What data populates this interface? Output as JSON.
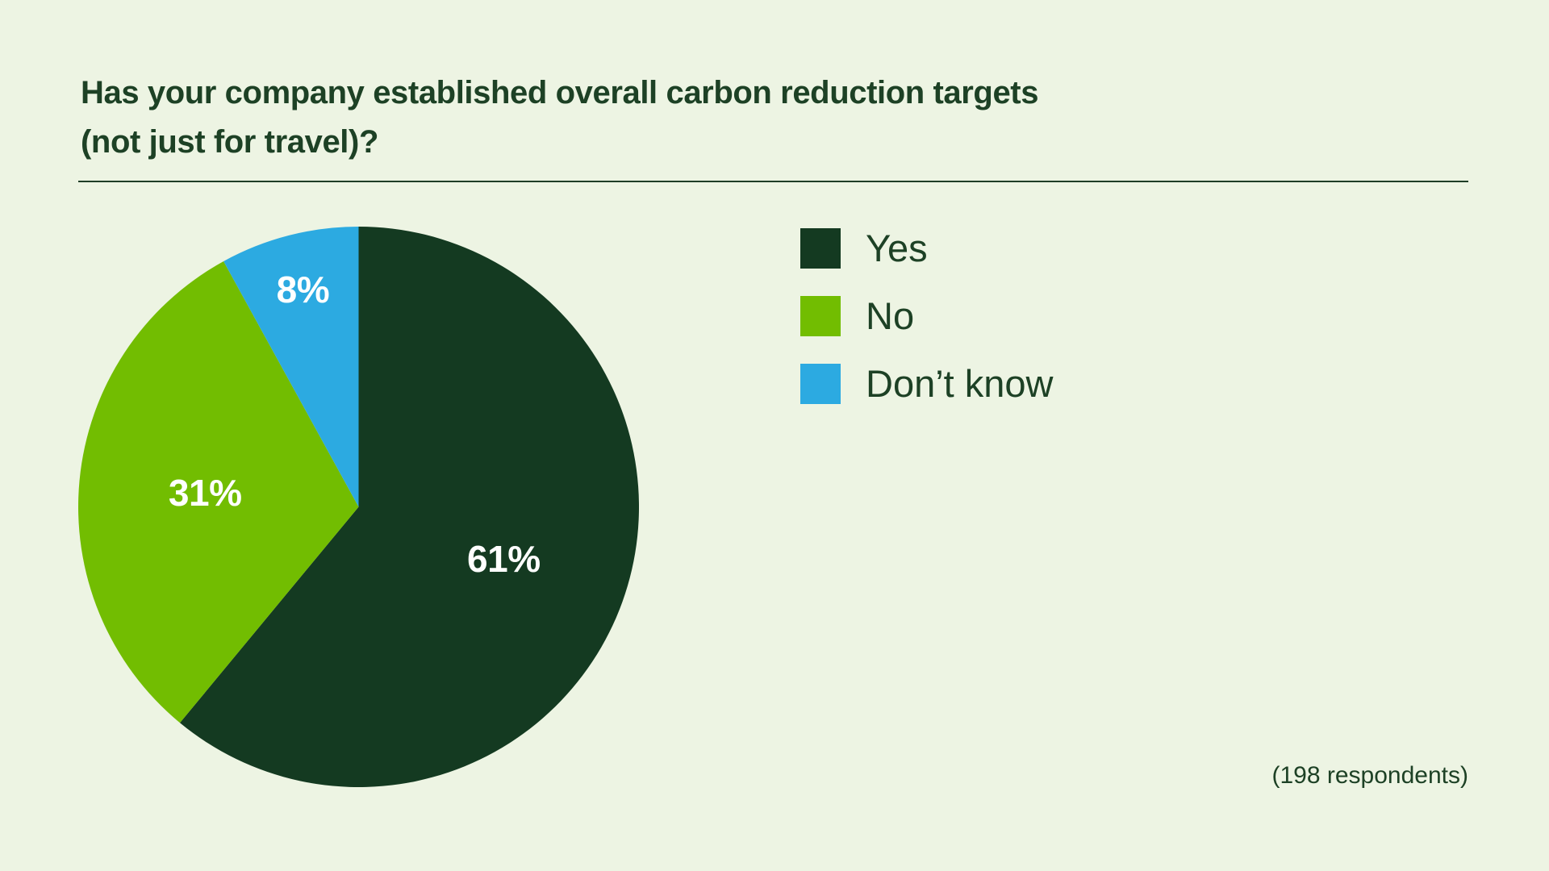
{
  "page": {
    "background_color": "#edf4e3",
    "text_color": "#1d4125"
  },
  "header": {
    "title_line1": "Has your company established overall carbon reduction targets",
    "title_line2": "(not just for travel)?"
  },
  "chart_data": {
    "type": "pie",
    "title": "Has your company established overall carbon reduction targets (not just for travel)?",
    "slices": [
      {
        "label": "Yes",
        "value": 61,
        "display": "61%",
        "color": "#143a21"
      },
      {
        "label": "No",
        "value": 31,
        "display": "31%",
        "color": "#72bd01"
      },
      {
        "label": "Don’t know",
        "value": 8,
        "display": "8%",
        "color": "#2caae1"
      }
    ],
    "start_angle": "top",
    "direction": "clockwise",
    "legend_position": "right",
    "label_color": "#ffffff",
    "note": "(198 respondents)"
  }
}
